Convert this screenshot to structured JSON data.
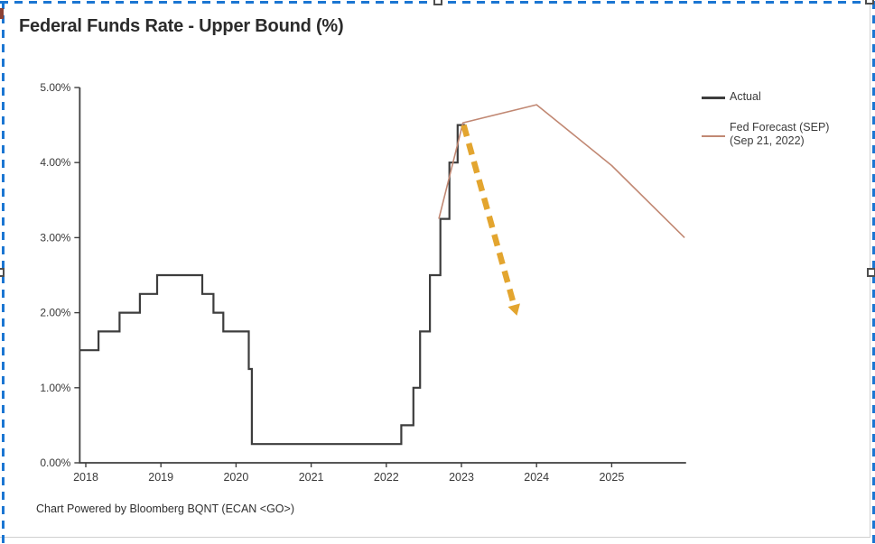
{
  "title": "Federal Funds Rate - Upper Bound (%)",
  "footer": "Chart Powered by Bloomberg BQNT (ECAN <GO>)",
  "legend": {
    "actual_label": "Actual",
    "forecast_label_line1": "Fed Forecast (SEP)",
    "forecast_label_line2": "(Sep 21, 2022)"
  },
  "colors": {
    "actual": "#3d3d3d",
    "forecast": "#c18873",
    "arrow": "#e3a52f",
    "axis": "#3f3f3f",
    "tick_text": "#3a3a3a",
    "selection": "#1b76d2",
    "background": "#ffffff"
  },
  "chart_data": {
    "type": "line",
    "title": "Federal Funds Rate - Upper Bound (%)",
    "xlabel": "",
    "ylabel": "",
    "xlim": [
      2017.92,
      2025.99
    ],
    "ylim": [
      0,
      5
    ],
    "grid": false,
    "legend_position": "right",
    "y_ticks": [
      {
        "value": 0,
        "label": "0.00%"
      },
      {
        "value": 1,
        "label": "1.00%"
      },
      {
        "value": 2,
        "label": "2.00%"
      },
      {
        "value": 3,
        "label": "3.00%"
      },
      {
        "value": 4,
        "label": "4.00%"
      },
      {
        "value": 5,
        "label": "5.00%"
      }
    ],
    "x_ticks": [
      {
        "value": 2018,
        "label": "2018"
      },
      {
        "value": 2019,
        "label": "2019"
      },
      {
        "value": 2020,
        "label": "2020"
      },
      {
        "value": 2021,
        "label": "2021"
      },
      {
        "value": 2022,
        "label": "2022"
      },
      {
        "value": 2023,
        "label": "2023"
      },
      {
        "value": 2024,
        "label": "2024"
      },
      {
        "value": 2025,
        "label": "2025"
      }
    ],
    "series": [
      {
        "name": "Actual",
        "style": "step",
        "points": [
          [
            2017.92,
            1.5
          ],
          [
            2018.17,
            1.75
          ],
          [
            2018.45,
            2.0
          ],
          [
            2018.72,
            2.25
          ],
          [
            2018.95,
            2.5
          ],
          [
            2019.55,
            2.25
          ],
          [
            2019.7,
            2.0
          ],
          [
            2019.83,
            1.75
          ],
          [
            2020.17,
            1.25
          ],
          [
            2020.21,
            0.25
          ],
          [
            2022.2,
            0.5
          ],
          [
            2022.36,
            1.0
          ],
          [
            2022.45,
            1.75
          ],
          [
            2022.58,
            2.5
          ],
          [
            2022.72,
            3.25
          ],
          [
            2022.84,
            4.0
          ],
          [
            2022.95,
            4.5
          ]
        ],
        "end_x": 2023.05
      },
      {
        "name": "Fed Forecast (SEP) (Sep 21, 2022)",
        "style": "line",
        "points": [
          [
            2022.7,
            3.25
          ],
          [
            2023.02,
            4.53
          ],
          [
            2024.0,
            4.77
          ],
          [
            2025.0,
            3.96
          ],
          [
            2025.97,
            3.0
          ]
        ]
      }
    ],
    "annotation_arrow": {
      "style": "dashed",
      "from": [
        2023.03,
        4.5
      ],
      "to": [
        2023.7,
        2.1
      ]
    }
  }
}
